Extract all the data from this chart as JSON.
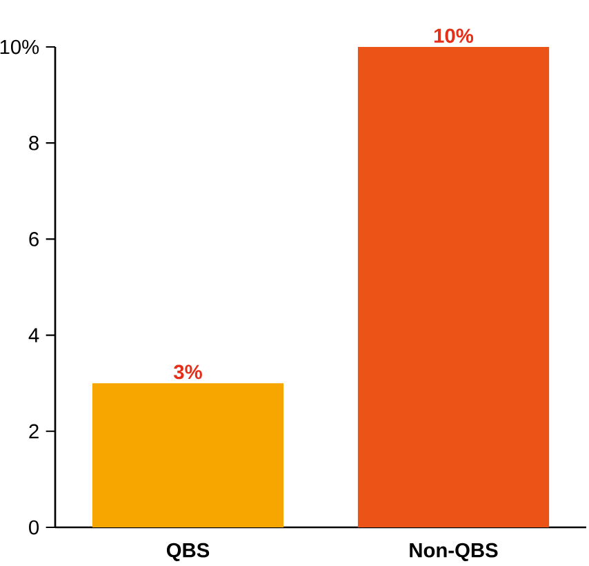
{
  "chart_data": {
    "type": "bar",
    "categories": [
      "QBS",
      "Non-QBS"
    ],
    "values": [
      3,
      10
    ],
    "colors": [
      "#f7a600",
      "#ec5316"
    ],
    "value_labels": [
      "3%",
      "10%"
    ],
    "ylim": [
      0,
      10
    ],
    "yticks": [
      0,
      2,
      4,
      6,
      8,
      {
        "value": 10,
        "label": "10%"
      }
    ],
    "grid": false
  }
}
